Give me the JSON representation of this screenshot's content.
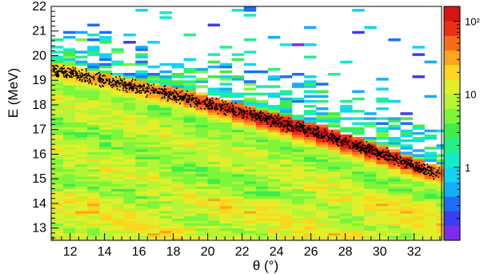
{
  "chart_data": {
    "type": "heatmap",
    "title": "",
    "xlabel": "θ (°)",
    "ylabel": "E (MeV)",
    "xlim": [
      10.9,
      33.6
    ],
    "ylim": [
      12.5,
      22.0
    ],
    "x_ticks": [
      12,
      14,
      16,
      18,
      20,
      22,
      24,
      26,
      28,
      30,
      32
    ],
    "y_ticks": [
      13,
      14,
      15,
      16,
      17,
      18,
      19,
      20,
      21,
      22
    ],
    "x_bin_width": 0.7,
    "y_bin_height": 0.1,
    "colorbar": {
      "scale": "log",
      "range": [
        0.1,
        160
      ],
      "tick_labels": [
        {
          "value": 1,
          "label": "1"
        },
        {
          "value": 10,
          "label": "10"
        },
        {
          "value": 100,
          "label": "10²"
        }
      ],
      "colors": [
        "#7b2cf0",
        "#3c3cf5",
        "#1c6ef9",
        "#14aef9",
        "#0ed6f2",
        "#12ebc9",
        "#23f088",
        "#3fec48",
        "#7cf53a",
        "#b4f536",
        "#e1ef2a",
        "#fbd71e",
        "#fda51b",
        "#f86b18",
        "#ec2e14",
        "#d71515"
      ]
    },
    "ridge": {
      "description_points": [
        {
          "theta": 11.0,
          "E": 19.4
        },
        {
          "theta": 14.0,
          "E": 19.0
        },
        {
          "theta": 18.0,
          "E": 18.4
        },
        {
          "theta": 22.0,
          "E": 17.7
        },
        {
          "theta": 26.0,
          "E": 16.95
        },
        {
          "theta": 30.0,
          "E": 16.05
        },
        {
          "theta": 33.3,
          "E": 15.2
        }
      ],
      "peak_counts": [
        {
          "theta": 11.0,
          "count": 20
        },
        {
          "theta": 18.0,
          "count": 40
        },
        {
          "theta": 24.0,
          "count": 110
        },
        {
          "theta": 27.0,
          "count": 120
        },
        {
          "theta": 31.0,
          "count": 90
        },
        {
          "theta": 33.3,
          "count": 40
        }
      ]
    },
    "background_level": 8,
    "high_energy_level": 2,
    "marker_color": "#000000"
  }
}
